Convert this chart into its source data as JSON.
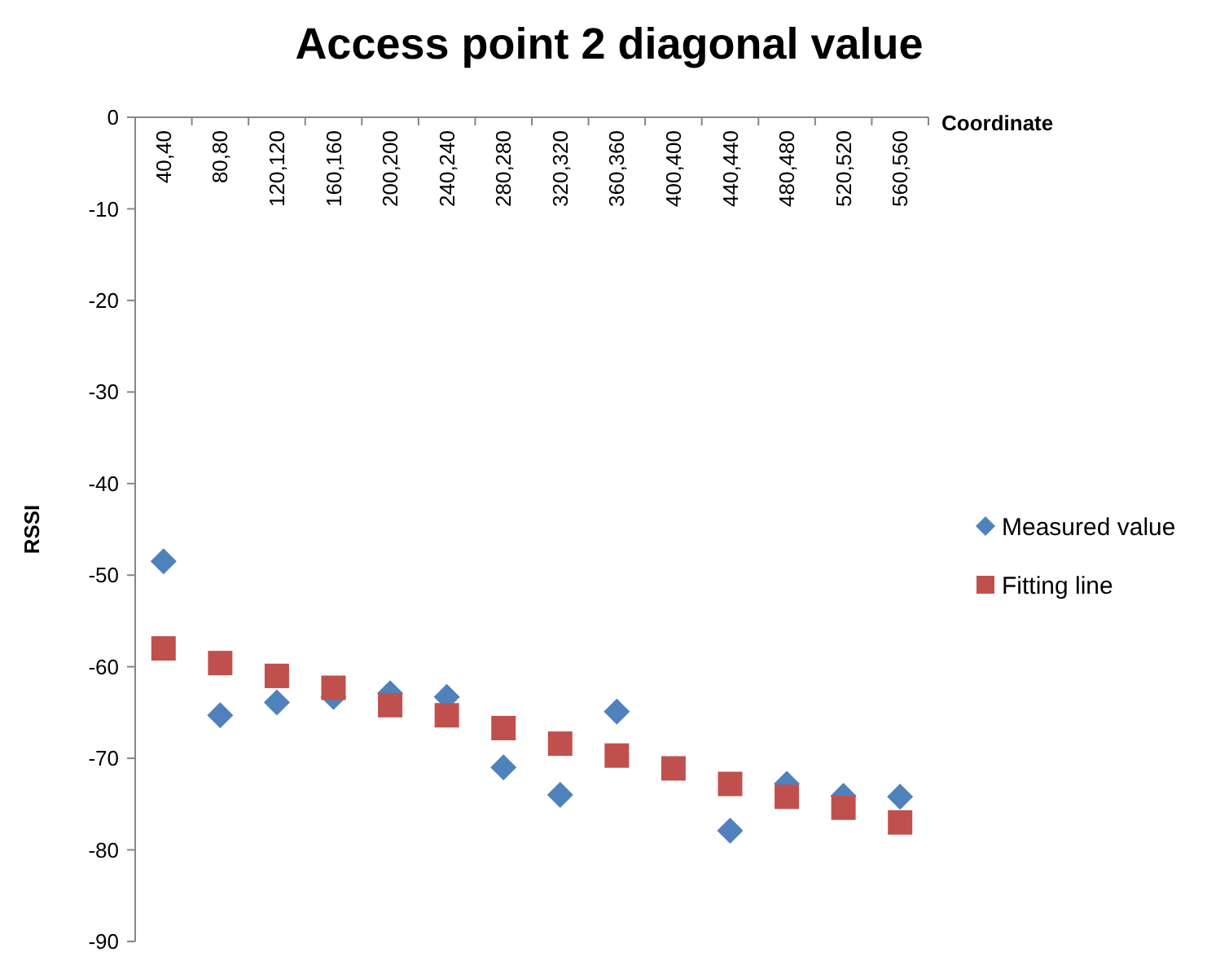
{
  "chart_data": {
    "type": "scatter",
    "title": "Access point 2 diagonal value",
    "xlabel": "Coordinate",
    "ylabel": "RSSI",
    "categories": [
      "40,40",
      "80,80",
      "120,120",
      "160,160",
      "200,200",
      "240,240",
      "280,280",
      "320,320",
      "360,360",
      "400,400",
      "440,440",
      "480,480",
      "520,520",
      "560,560"
    ],
    "ylim": [
      -90,
      0
    ],
    "yticks": [
      0,
      -10,
      -20,
      -30,
      -40,
      -50,
      -60,
      -70,
      -80,
      -90
    ],
    "legend": "right",
    "series": [
      {
        "name": "Measured value",
        "color": "#4f81bd",
        "marker": "diamond",
        "values": [
          -48.5,
          -65.3,
          -63.9,
          -63.3,
          -62.9,
          -63.3,
          -71.0,
          -74.0,
          -64.9,
          null,
          -77.9,
          -72.8,
          -74.1,
          -74.2
        ]
      },
      {
        "name": "Fitting line",
        "color": "#c0504d",
        "marker": "square",
        "values": [
          -58.0,
          -59.6,
          -61.0,
          -62.3,
          -64.2,
          -65.3,
          -66.7,
          -68.4,
          -69.7,
          -71.1,
          -72.8,
          -74.2,
          -75.4,
          -77.0
        ]
      }
    ]
  }
}
